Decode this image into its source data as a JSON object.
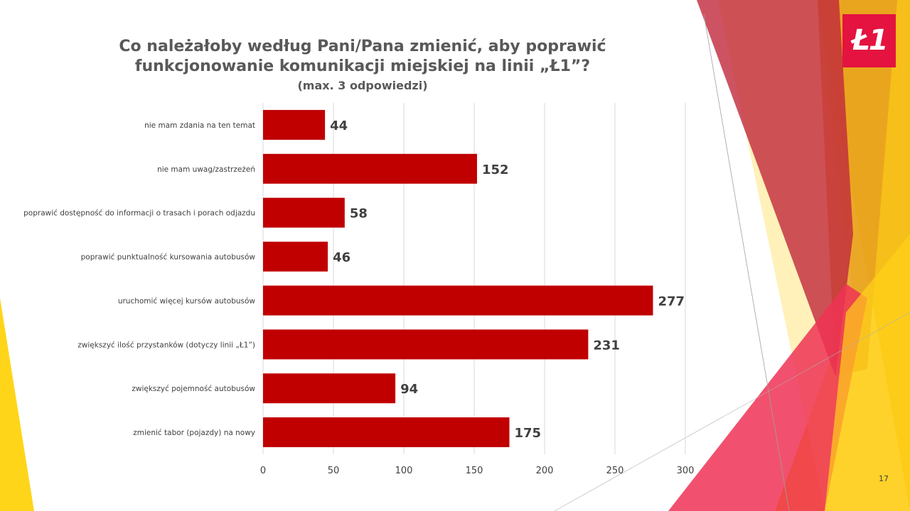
{
  "slide": {
    "title_line1": "Co należałoby według Pani/Pana zmienić, aby poprawić",
    "title_line2": "funkcjonowanie komunikacji miejskiej na linii „Ł1”?",
    "subtitle": "(max. 3 odpowiedzi)",
    "logo_text": "Ł1",
    "page_number": "17"
  },
  "colors": {
    "bar": "#c00000",
    "grid": "#d9d9d9",
    "label": "#404040",
    "value": "#404040",
    "logo": "#e4133f"
  },
  "chart_data": {
    "type": "bar",
    "orientation": "horizontal",
    "categories": [
      "nie mam zdania na ten temat",
      "nie mam uwag/zastrzeżeń",
      "poprawić dostępność do informacji o trasach i porach odjazdu",
      "poprawić punktualność kursowania autobusów",
      "uruchomić więcej kursów autobusów",
      "zwiększyć ilość przystanków (dotyczy linii „Ł1”)",
      "zwiększyć pojemność autobusów",
      "zmienić tabor (pojazdy) na nowy"
    ],
    "values": [
      44,
      152,
      58,
      46,
      277,
      231,
      94,
      175
    ],
    "xlim": [
      0,
      300
    ],
    "xticks": [
      0,
      50,
      100,
      150,
      200,
      250,
      300
    ],
    "title": "Co należałoby według Pani/Pana zmienić, aby poprawić funkcjonowanie komunikacji miejskiej na linii „Ł1”?",
    "subtitle": "(max. 3 odpowiedzi)",
    "grid": true,
    "legend": "none"
  }
}
